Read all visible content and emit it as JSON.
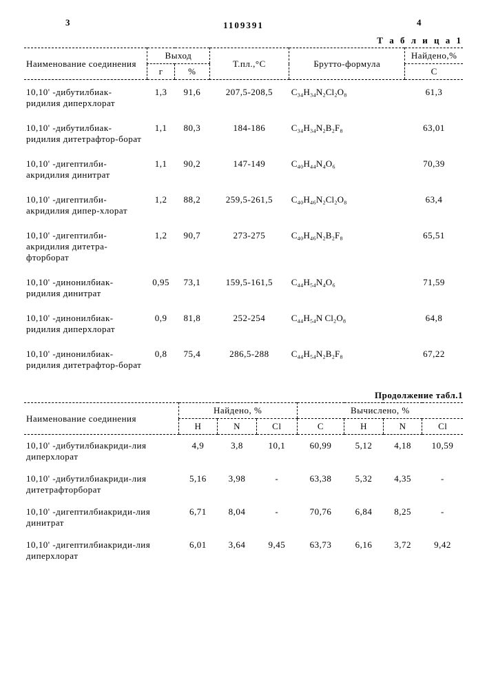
{
  "header": {
    "left_page": "3",
    "right_page": "4",
    "patent_no": "1109391",
    "table_label": "Т а б л и ц а 1",
    "continuation": "Продолжение табл.1"
  },
  "table1": {
    "cols": {
      "name": "Наименование соединения",
      "yield": "Выход",
      "yield_g": "г",
      "yield_pct": "%",
      "mp": "Т.пл.,°C",
      "brutto": "Брутто-формула",
      "found": "Найдено,%",
      "found_c": "C"
    },
    "rows": [
      {
        "name": "10,10' -дибутилбиак-ридилия диперхлорат",
        "g": "1,3",
        "pct": "91,6",
        "mp": "207,5-208,5",
        "formula": "C₃₄H₃₄N₂Cl₂O₈",
        "c": "61,3"
      },
      {
        "name": "10,10' -дибутилбиак-ридилия дитетрафтор-борат",
        "g": "1,1",
        "pct": "80,3",
        "mp": "184-186",
        "formula": "C₃₄H₃₄N₂B₂F₈",
        "c": "63,01"
      },
      {
        "name": "10,10' -дигептилби-акридилия динитрат",
        "g": "1,1",
        "pct": "90,2",
        "mp": "147-149",
        "formula": "C₄₀H₄₄N₄O₆",
        "c": "70,39"
      },
      {
        "name": "10,10' -дигептилби-акридилия дипер-хлорат",
        "g": "1,2",
        "pct": "88,2",
        "mp": "259,5-261,5",
        "formula": "C₄₀H₄₆N₂Cl₂O₈",
        "c": "63,4"
      },
      {
        "name": "10,10' -дигептилби-акридилия дитетра-фторборат",
        "g": "1,2",
        "pct": "90,7",
        "mp": "273-275",
        "formula": "C₄₀H₄₆N₂B₂F₈",
        "c": "65,51"
      },
      {
        "name": "10,10' -динонилбиак-ридилия динитрат",
        "g": "0,95",
        "pct": "73,1",
        "mp": "159,5-161,5",
        "formula": "C₄₄H₅₄N₄O₆",
        "c": "71,59"
      },
      {
        "name": "10,10' -динонилбиак-ридилия диперхлорат",
        "g": "0,9",
        "pct": "81,8",
        "mp": "252-254",
        "formula": "C₄₄H₅₄N Cl₂O₈",
        "c": "64,8"
      },
      {
        "name": "10,10' -динонилбиак-ридилия дитетрафтор-борат",
        "g": "0,8",
        "pct": "75,4",
        "mp": "286,5-288",
        "formula": "C₄₄H₅₄N₂B₂F₈",
        "c": "67,22"
      }
    ]
  },
  "table2": {
    "cols": {
      "name": "Наименование соединения",
      "found": "Найдено, %",
      "calc": "Вычислено, %",
      "h": "H",
      "n": "N",
      "cl": "Cl",
      "c": "C"
    },
    "rows": [
      {
        "name": "10,10' -дибутилбиакриди-лия диперхлорат",
        "fh": "4,9",
        "fn": "3,8",
        "fcl": "10,1",
        "cc": "60,99",
        "ch": "5,12",
        "cn": "4,18",
        "ccl": "10,59"
      },
      {
        "name": "10,10' -дибутилбиакриди-лия дитетрафторборат",
        "fh": "5,16",
        "fn": "3,98",
        "fcl": "-",
        "cc": "63,38",
        "ch": "5,32",
        "cn": "4,35",
        "ccl": "-"
      },
      {
        "name": "10,10' -дигептилбиакриди-лия динитрат",
        "fh": "6,71",
        "fn": "8,04",
        "fcl": "-",
        "cc": "70,76",
        "ch": "6,84",
        "cn": "8,25",
        "ccl": "-"
      },
      {
        "name": "10,10' -дигептилбиакриди-лия диперхлорат",
        "fh": "6,01",
        "fn": "3,64",
        "fcl": "9,45",
        "cc": "63,73",
        "ch": "6,16",
        "cn": "3,72",
        "ccl": "9,42"
      }
    ]
  }
}
